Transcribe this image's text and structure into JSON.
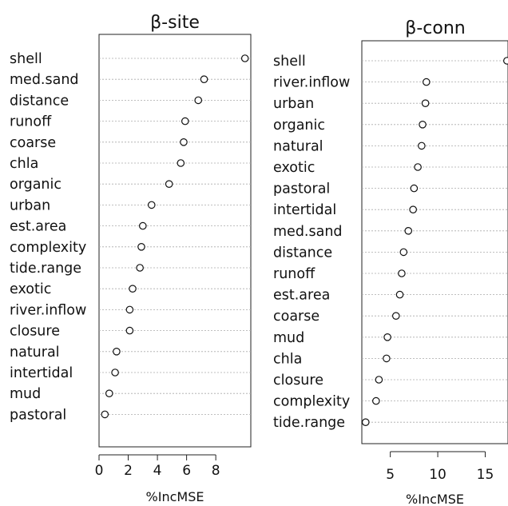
{
  "chart_data": [
    {
      "type": "dotchart",
      "title": "β-site",
      "xlabel": "%IncMSE",
      "xlim": [
        0,
        10.4
      ],
      "xticks": [
        0,
        2,
        4,
        6,
        8
      ],
      "grid": "dotted horizontal lines",
      "categories": [
        "shell",
        "med.sand",
        "distance",
        "runoff",
        "coarse",
        "chla",
        "organic",
        "urban",
        "est.area",
        "complexity",
        "tide.range",
        "exotic",
        "river.inflow",
        "closure",
        "natural",
        "intertidal",
        "mud",
        "pastoral"
      ],
      "values": [
        10.0,
        7.2,
        6.8,
        5.9,
        5.8,
        5.6,
        4.8,
        3.6,
        3.0,
        2.9,
        2.8,
        2.3,
        2.1,
        2.1,
        1.2,
        1.1,
        0.7,
        0.4
      ]
    },
    {
      "type": "dotchart",
      "title": "β-conn",
      "xlabel": "%IncMSE",
      "xlim": [
        2.0,
        17.4
      ],
      "xticks": [
        5,
        10,
        15
      ],
      "grid": "dotted horizontal lines",
      "categories": [
        "shell",
        "river.inflow",
        "urban",
        "organic",
        "natural",
        "exotic",
        "pastoral",
        "intertidal",
        "med.sand",
        "distance",
        "runoff",
        "est.area",
        "coarse",
        "mud",
        "chla",
        "closure",
        "complexity",
        "tide.range"
      ],
      "values": [
        17.3,
        8.8,
        8.7,
        8.4,
        8.3,
        7.9,
        7.5,
        7.4,
        6.9,
        6.4,
        6.2,
        6.0,
        5.6,
        4.7,
        4.6,
        3.8,
        3.5,
        2.4
      ]
    }
  ]
}
